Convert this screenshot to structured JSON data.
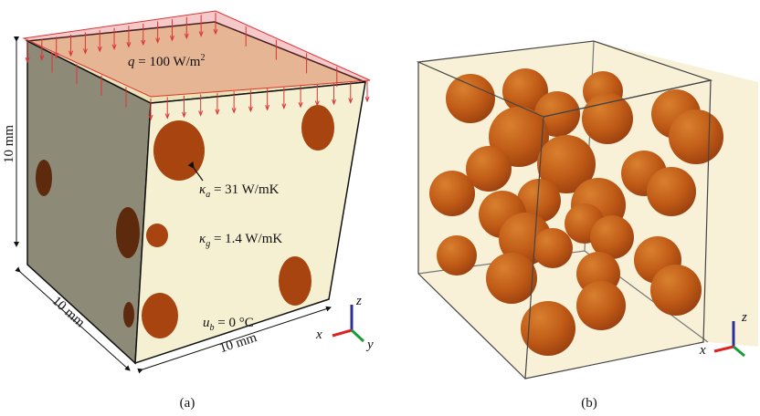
{
  "panel_a": {
    "caption": "(a)",
    "heat_flux": {
      "symbol": "q",
      "rest": " = 100 W/m",
      "exp": "2"
    },
    "height": "10 mm",
    "depth": "10 mm",
    "width": "10 mm",
    "kappa_a": {
      "symbol": "κ",
      "sub": "a",
      "rest": " = 31 W/mK"
    },
    "kappa_g": {
      "symbol": "κ",
      "sub": "g",
      "rest": " = 1.4 W/mK"
    },
    "boundary": {
      "symbol": "u",
      "sub": "b",
      "rest": " = 0 °C"
    },
    "axes": {
      "x": "x",
      "y": "y",
      "z": "z"
    }
  },
  "panel_b": {
    "caption": "(b)",
    "axes": {
      "x": "x",
      "z": "z"
    }
  }
}
